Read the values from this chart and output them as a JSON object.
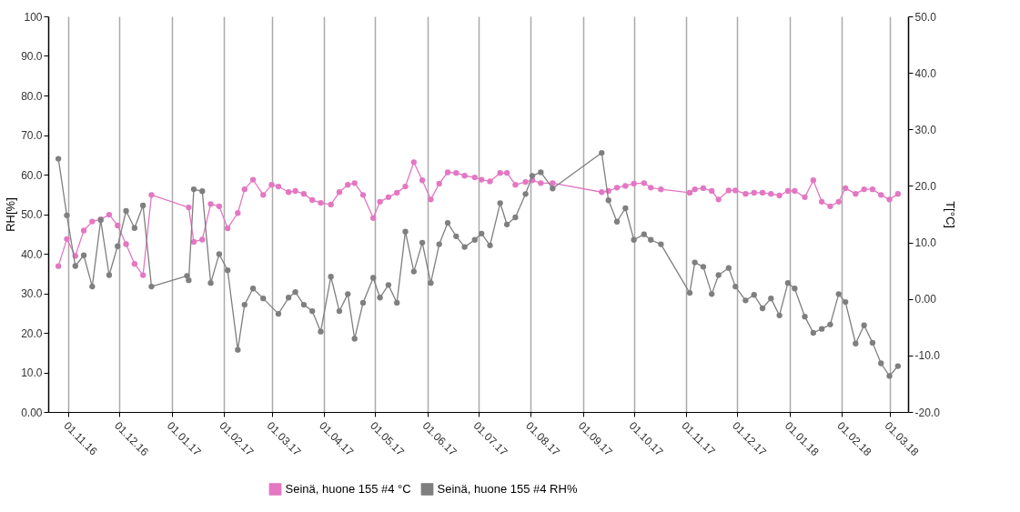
{
  "chart_data": {
    "type": "line",
    "ylabel": "RH[%]",
    "y2label": "T[°C]",
    "xlim": [
      "2016-10-20",
      "2018-03-12"
    ],
    "xticks": [
      {
        "value": "2016-11-01",
        "label": "01.11.16"
      },
      {
        "value": "2016-12-01",
        "label": "01.12.16"
      },
      {
        "value": "2017-01-01",
        "label": "01.01.17"
      },
      {
        "value": "2017-02-01",
        "label": "01.02.17"
      },
      {
        "value": "2017-03-01",
        "label": "01.03.17"
      },
      {
        "value": "2017-04-01",
        "label": "01.04.17"
      },
      {
        "value": "2017-05-01",
        "label": "01.05.17"
      },
      {
        "value": "2017-06-01",
        "label": "01.06.17"
      },
      {
        "value": "2017-07-01",
        "label": "01.07.17"
      },
      {
        "value": "2017-08-01",
        "label": "01.08.17"
      },
      {
        "value": "2017-09-01",
        "label": "01.09.17"
      },
      {
        "value": "2017-10-01",
        "label": "01.10.17"
      },
      {
        "value": "2017-11-01",
        "label": "01.11.17"
      },
      {
        "value": "2017-12-01",
        "label": "01.12.17"
      },
      {
        "value": "2018-01-01",
        "label": "01.01.18"
      },
      {
        "value": "2018-02-01",
        "label": "01.02.18"
      },
      {
        "value": "2018-03-01",
        "label": "01.03.18"
      }
    ],
    "ylim": [
      0,
      100
    ],
    "yticks": [
      {
        "value": 0,
        "label": "0.00"
      },
      {
        "value": 10,
        "label": "10.0"
      },
      {
        "value": 20,
        "label": "20.0"
      },
      {
        "value": 30,
        "label": "30.0"
      },
      {
        "value": 40,
        "label": "40.0"
      },
      {
        "value": 50,
        "label": "50.0"
      },
      {
        "value": 60,
        "label": "60.0"
      },
      {
        "value": 70,
        "label": "70.0"
      },
      {
        "value": 80,
        "label": "80.0"
      },
      {
        "value": 90,
        "label": "90.0"
      },
      {
        "value": 100,
        "label": "100"
      }
    ],
    "y2lim": [
      -20,
      50
    ],
    "y2ticks": [
      {
        "value": -20,
        "label": "-20.0"
      },
      {
        "value": -10,
        "label": "-10.0"
      },
      {
        "value": 0,
        "label": "0.00"
      },
      {
        "value": 10,
        "label": "10.0"
      },
      {
        "value": 20,
        "label": "20.0"
      },
      {
        "value": 30,
        "label": "30.0"
      },
      {
        "value": 40,
        "label": "40.0"
      },
      {
        "value": 50,
        "label": "50.0"
      }
    ],
    "grid": "x",
    "legend": "bottom",
    "marker": "circle",
    "line_style": "solid",
    "series": [
      {
        "name": "Seinä, huone 155 #4 °C",
        "color": "#e377c2",
        "axis": "y2",
        "x": [
          "2016-10-26",
          "2016-10-31",
          "2016-11-05",
          "2016-11-10",
          "2016-11-15",
          "2016-11-20",
          "2016-11-25",
          "2016-11-30",
          "2016-12-05",
          "2016-12-10",
          "2016-12-15",
          "2016-12-20",
          "2017-01-11",
          "2017-01-14",
          "2017-01-19",
          "2017-01-24",
          "2017-01-29",
          "2017-02-03",
          "2017-02-09",
          "2017-02-13",
          "2017-02-18",
          "2017-02-24",
          "2017-03-01",
          "2017-03-05",
          "2017-03-11",
          "2017-03-15",
          "2017-03-20",
          "2017-03-25",
          "2017-03-30",
          "2017-04-05",
          "2017-04-10",
          "2017-04-15",
          "2017-04-19",
          "2017-04-24",
          "2017-04-30",
          "2017-05-04",
          "2017-05-09",
          "2017-05-14",
          "2017-05-19",
          "2017-05-24",
          "2017-05-29",
          "2017-06-03",
          "2017-06-08",
          "2017-06-13",
          "2017-06-18",
          "2017-06-23",
          "2017-06-29",
          "2017-07-03",
          "2017-07-08",
          "2017-07-14",
          "2017-07-18",
          "2017-07-23",
          "2017-07-29",
          "2017-08-02",
          "2017-08-07",
          "2017-08-14",
          "2017-09-12",
          "2017-09-16",
          "2017-09-21",
          "2017-09-26",
          "2017-10-01",
          "2017-10-07",
          "2017-10-11",
          "2017-10-17",
          "2017-11-03",
          "2017-11-06",
          "2017-11-11",
          "2017-11-16",
          "2017-11-20",
          "2017-11-26",
          "2017-11-30",
          "2017-12-06",
          "2017-12-11",
          "2017-12-16",
          "2017-12-21",
          "2017-12-26",
          "2017-12-31",
          "2018-01-04",
          "2018-01-10",
          "2018-01-15",
          "2018-01-20",
          "2018-01-25",
          "2018-01-30",
          "2018-02-03",
          "2018-02-09",
          "2018-02-14",
          "2018-02-19",
          "2018-02-24",
          "2018-03-01",
          "2018-03-06"
        ],
        "values": [
          5.8,
          10.6,
          7.6,
          12.1,
          13.7,
          14.1,
          14.9,
          13.0,
          9.7,
          6.2,
          4.2,
          18.4,
          16.2,
          10.1,
          10.5,
          16.8,
          16.4,
          12.5,
          15.2,
          19.4,
          21.1,
          18.4,
          20.2,
          19.9,
          18.9,
          19.1,
          18.6,
          17.5,
          17.0,
          16.7,
          18.9,
          20.2,
          20.5,
          18.4,
          14.3,
          17.2,
          18.0,
          18.8,
          19.9,
          24.2,
          21.0,
          17.6,
          20.4,
          22.4,
          22.3,
          21.8,
          21.5,
          21.1,
          20.8,
          22.3,
          22.3,
          20.2,
          20.7,
          21.0,
          20.5,
          20.5,
          18.9,
          19.1,
          19.7,
          20.0,
          20.4,
          20.5,
          19.7,
          19.4,
          18.8,
          19.4,
          19.6,
          19.1,
          17.6,
          19.2,
          19.2,
          18.6,
          18.8,
          18.8,
          18.6,
          18.3,
          19.1,
          19.1,
          18.0,
          21.0,
          17.2,
          16.4,
          17.2,
          19.6,
          18.6,
          19.4,
          19.4,
          18.4,
          17.6,
          18.6
        ]
      },
      {
        "name": "Seinä, huone 155 #4 RH%",
        "color": "#7f7f7f",
        "x": [
          "2016-10-26",
          "2016-10-31",
          "2016-11-05",
          "2016-11-10",
          "2016-11-15",
          "2016-11-20",
          "2016-11-25",
          "2016-11-30",
          "2016-12-05",
          "2016-12-10",
          "2016-12-15",
          "2016-12-20",
          "2017-01-10",
          "2017-01-11",
          "2017-01-14",
          "2017-01-19",
          "2017-01-24",
          "2017-01-29",
          "2017-02-03",
          "2017-02-09",
          "2017-02-13",
          "2017-02-18",
          "2017-02-24",
          "2017-03-05",
          "2017-03-11",
          "2017-03-15",
          "2017-03-20",
          "2017-03-25",
          "2017-03-30",
          "2017-04-05",
          "2017-04-10",
          "2017-04-15",
          "2017-04-19",
          "2017-04-24",
          "2017-04-30",
          "2017-05-04",
          "2017-05-09",
          "2017-05-14",
          "2017-05-19",
          "2017-05-24",
          "2017-05-29",
          "2017-06-03",
          "2017-06-08",
          "2017-06-13",
          "2017-06-18",
          "2017-06-23",
          "2017-06-29",
          "2017-07-03",
          "2017-07-08",
          "2017-07-14",
          "2017-07-18",
          "2017-07-23",
          "2017-07-29",
          "2017-08-02",
          "2017-08-07",
          "2017-08-14",
          "2017-09-12",
          "2017-09-16",
          "2017-09-21",
          "2017-09-26",
          "2017-10-01",
          "2017-10-07",
          "2017-10-11",
          "2017-10-17",
          "2017-11-03",
          "2017-11-06",
          "2017-11-11",
          "2017-11-16",
          "2017-11-20",
          "2017-11-26",
          "2017-11-30",
          "2017-12-06",
          "2017-12-11",
          "2017-12-16",
          "2017-12-21",
          "2017-12-26",
          "2017-12-31",
          "2018-01-04",
          "2018-01-10",
          "2018-01-15",
          "2018-01-20",
          "2018-01-25",
          "2018-01-30",
          "2018-02-03",
          "2018-02-09",
          "2018-02-14",
          "2018-02-19",
          "2018-02-24",
          "2018-03-01",
          "2018-03-06"
        ],
        "values": [
          64.0,
          49.7,
          36.9,
          39.6,
          31.7,
          48.5,
          34.6,
          41.9,
          50.8,
          46.5,
          52.2,
          31.7,
          34.4,
          33.3,
          56.3,
          55.8,
          32.6,
          39.9,
          35.8,
          15.7,
          27.1,
          31.2,
          28.7,
          24.8,
          28.9,
          30.3,
          27.1,
          25.5,
          20.3,
          34.2,
          25.5,
          29.8,
          18.5,
          27.6,
          33.9,
          28.9,
          32.1,
          27.6,
          45.6,
          35.5,
          42.8,
          32.6,
          42.4,
          47.8,
          44.4,
          41.7,
          43.5,
          45.1,
          42.1,
          52.8,
          47.4,
          49.2,
          55.1,
          59.7,
          60.6,
          56.5,
          65.5,
          53.5,
          48.1,
          51.5,
          43.5,
          44.9,
          43.5,
          42.4,
          30.1,
          37.8,
          36.7,
          29.8,
          34.6,
          36.4,
          31.7,
          28.2,
          29.6,
          26.2,
          28.7,
          24.4,
          32.6,
          31.2,
          24.1,
          20.0,
          21.0,
          22.1,
          29.8,
          27.8,
          17.3,
          21.9,
          17.5,
          12.3,
          9.1,
          11.6
        ]
      }
    ]
  }
}
